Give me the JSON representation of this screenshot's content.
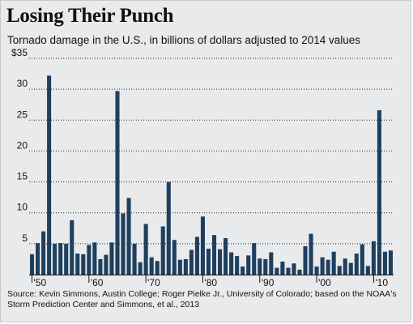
{
  "chart_data": {
    "type": "bar",
    "title": "Losing Their Punch",
    "subtitle": "Tornado damage in the U.S., in billions of dollars adjusted to 2014 values",
    "xlabel": "",
    "ylabel": "",
    "ylim": [
      0,
      35
    ],
    "yticks": [
      "$35",
      "30",
      "25",
      "20",
      "15",
      "10",
      "5"
    ],
    "ytick_values": [
      35,
      30,
      25,
      20,
      15,
      10,
      5
    ],
    "xtick_labels": [
      "'50",
      "'60",
      "'70",
      "'80",
      "'90",
      "'00",
      "'10"
    ],
    "xtick_years": [
      1950,
      1960,
      1970,
      1980,
      1990,
      2000,
      2010
    ],
    "grid": "horizontal dotted",
    "bar_color": "#1f3f5e",
    "years": [
      1950,
      1951,
      1952,
      1953,
      1954,
      1955,
      1956,
      1957,
      1958,
      1959,
      1960,
      1961,
      1962,
      1963,
      1964,
      1965,
      1966,
      1967,
      1968,
      1969,
      1970,
      1971,
      1972,
      1973,
      1974,
      1975,
      1976,
      1977,
      1978,
      1979,
      1980,
      1981,
      1982,
      1983,
      1984,
      1985,
      1986,
      1987,
      1988,
      1989,
      1990,
      1991,
      1992,
      1993,
      1994,
      1995,
      1996,
      1997,
      1998,
      1999,
      2000,
      2001,
      2002,
      2003,
      2004,
      2005,
      2006,
      2007,
      2008,
      2009,
      2010,
      2011,
      2012,
      2013
    ],
    "values": [
      3.3,
      5.1,
      7.0,
      32.2,
      5.0,
      5.1,
      5.0,
      8.8,
      3.4,
      3.3,
      4.8,
      5.2,
      2.5,
      3.2,
      5.2,
      29.7,
      9.9,
      12.4,
      5.0,
      2.0,
      8.2,
      2.8,
      2.2,
      7.8,
      15.0,
      5.6,
      2.4,
      2.5,
      4.0,
      6.1,
      9.4,
      4.2,
      6.4,
      4.1,
      5.9,
      3.6,
      3.0,
      1.3,
      3.1,
      5.1,
      2.6,
      2.5,
      3.6,
      1.1,
      2.1,
      1.1,
      1.8,
      0.8,
      4.6,
      6.6,
      1.3,
      2.8,
      2.4,
      3.7,
      1.4,
      2.6,
      1.9,
      3.4,
      4.9,
      1.4,
      5.4,
      26.6,
      3.7,
      3.9
    ]
  },
  "source": "Source: Kevin Simmons, Austin College; Roger Pielke Jr., University of Colorado; based on the NOAA's Storm Prediction Center and Simmons, et al., 2013"
}
